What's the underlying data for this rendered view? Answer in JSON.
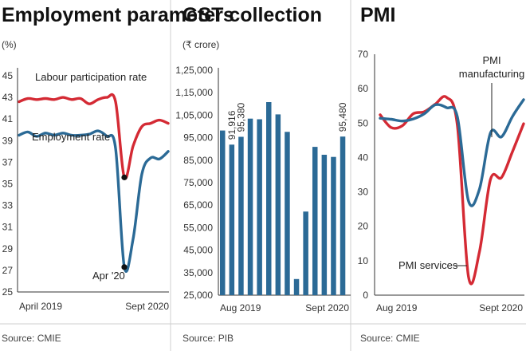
{
  "chart_data": [
    {
      "type": "line",
      "title": "Employment parameters",
      "unit": "(%)",
      "ylim": [
        25,
        45
      ],
      "yticks": [
        45,
        43,
        41,
        39,
        37,
        35,
        33,
        31,
        29,
        27,
        25
      ],
      "x_labels": [
        "April 2019",
        "Sept 2020"
      ],
      "x": [
        "Apr-19",
        "May-19",
        "Jun-19",
        "Jul-19",
        "Aug-19",
        "Sep-19",
        "Oct-19",
        "Nov-19",
        "Dec-19",
        "Jan-20",
        "Feb-20",
        "Mar-20",
        "Apr-20",
        "May-20",
        "Jun-20",
        "Jul-20",
        "Aug-20",
        "Sep-20"
      ],
      "series": [
        {
          "name": "Labour participation rate",
          "color": "#d42a34",
          "values": [
            42.6,
            42.9,
            42.8,
            42.9,
            42.8,
            43.0,
            42.8,
            42.9,
            42.4,
            42.8,
            43.0,
            42.6,
            35.6,
            38.5,
            40.3,
            40.6,
            40.9,
            40.6
          ]
        },
        {
          "name": "Employment rate",
          "color": "#2b6a96",
          "values": [
            39.5,
            39.8,
            39.4,
            39.7,
            39.5,
            39.7,
            39.5,
            39.5,
            39.6,
            39.9,
            39.4,
            38.3,
            27.3,
            29.9,
            35.9,
            37.4,
            37.3,
            38.0
          ]
        }
      ],
      "annotation": {
        "text": "Apr '20",
        "index": 12
      }
    },
    {
      "type": "bar",
      "title": "GST collection",
      "unit": "(₹ crore)",
      "ylim": [
        25000,
        130000
      ],
      "ytick_labels": [
        "1,25,000",
        "1,15,000",
        "1,05,000",
        "95,000",
        "85,000",
        "75,000",
        "65,000",
        "55,000",
        "45,000",
        "35,000",
        "25,000"
      ],
      "yticks": [
        125000,
        115000,
        105000,
        95000,
        85000,
        75000,
        65000,
        55000,
        45000,
        35000,
        25000
      ],
      "x_labels": [
        "Aug 2019",
        "Sept 2020"
      ],
      "x": [
        "Aug-19",
        "Sep-19",
        "Oct-19",
        "Nov-19",
        "Dec-19",
        "Jan-20",
        "Feb-20",
        "Mar-20",
        "Apr-20",
        "May-20",
        "Jun-20",
        "Jul-20",
        "Aug-20",
        "Sep-20"
      ],
      "values": [
        98202,
        91916,
        95380,
        103491,
        103184,
        110828,
        105366,
        97597,
        32172,
        62151,
        90917,
        87422,
        86449,
        95480
      ],
      "data_labels": [
        {
          "index": 1,
          "text": "91,916"
        },
        {
          "index": 2,
          "text": "95,380"
        },
        {
          "index": 13,
          "text": "95,480"
        }
      ]
    },
    {
      "type": "line",
      "title": "PMI",
      "ylim": [
        0,
        70
      ],
      "yticks": [
        70,
        60,
        50,
        40,
        30,
        20,
        10,
        0
      ],
      "x_labels": [
        "Aug 2019",
        "Sept 2020"
      ],
      "x": [
        "Aug-19",
        "Sep-19",
        "Oct-19",
        "Nov-19",
        "Dec-19",
        "Jan-20",
        "Feb-20",
        "Mar-20",
        "Apr-20",
        "May-20",
        "Jun-20",
        "Jul-20",
        "Aug-20",
        "Sep-20"
      ],
      "series": [
        {
          "name": "PMI manufacturing",
          "label_lines": [
            "PMI",
            "manufacturing"
          ],
          "color": "#2b6a96",
          "values": [
            51.4,
            51.1,
            50.6,
            51.2,
            52.7,
            55.3,
            54.5,
            51.8,
            27.4,
            30.8,
            47.2,
            46.0,
            52.0,
            56.8
          ]
        },
        {
          "name": "PMI services",
          "label_lines": [
            "PMI services"
          ],
          "color": "#d42a34",
          "values": [
            52.4,
            48.7,
            49.2,
            52.7,
            53.3,
            55.5,
            57.5,
            49.3,
            5.4,
            12.6,
            33.7,
            34.2,
            41.8,
            49.8
          ]
        }
      ]
    }
  ],
  "sources": [
    "Source: CMIE",
    "Source: PIB",
    "Source: CMIE"
  ]
}
